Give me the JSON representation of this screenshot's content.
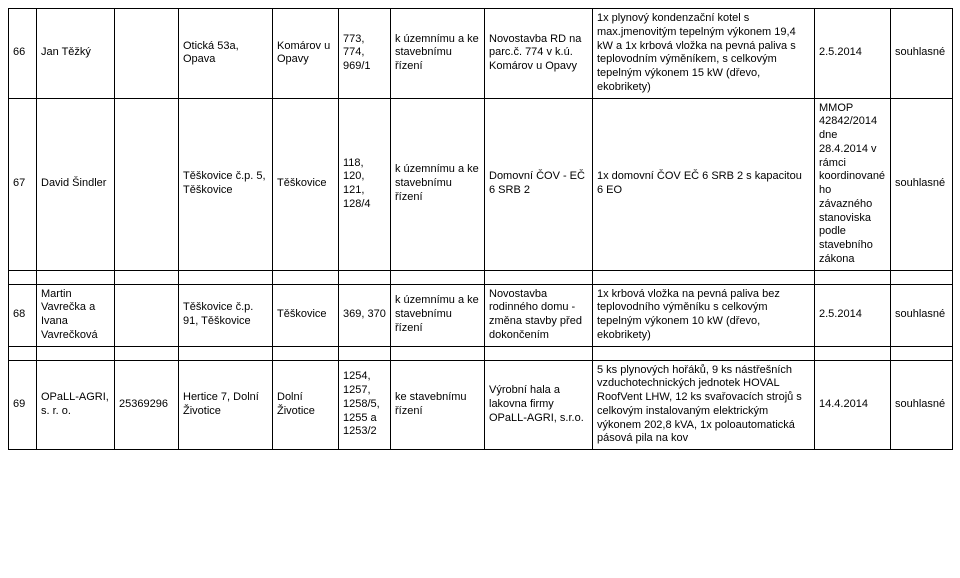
{
  "rows": [
    {
      "num": "66",
      "name": "Jan Těžký",
      "id": "",
      "addr": "Otická 53a, Opava",
      "loc": "Komárov u Opavy",
      "parc": "773, 774, 969/1",
      "proc": "k územnímu a ke stavebnímu řízení",
      "build": "Novostavba RD na parc.č. 774 v k.ú. Komárov u Opavy",
      "desc": "1x plynový kondenzační kotel s max.jmenovitým tepelným výkonem 19,4 kW a 1x krbová vložka na pevná paliva s teplovodním výměníkem, s celkovým tepelným výkonem 15 kW (dřevo, ekobrikety)",
      "date": "2.5.2014",
      "stat": "souhlasné"
    },
    {
      "num": "67",
      "name": "David Šindler",
      "id": "",
      "addr": "Těškovice č.p. 5, Těškovice",
      "loc": "Těškovice",
      "parc": "118, 120, 121, 128/4",
      "proc": "k územnímu a ke stavebnímu řízení",
      "build": "Domovní ČOV - EČ 6 SRB 2",
      "desc": "1x domovní ČOV EČ 6 SRB 2 s kapacitou 6 EO",
      "date": "MMOP 42842/2014 dne 28.4.2014 v rámci koordinovaného závazného stanoviska podle stavebního zákona",
      "stat": "souhlasné"
    },
    {
      "num": "68",
      "name": "Martin Vavrečka a Ivana Vavrečková",
      "id": "",
      "addr": "Těškovice č.p. 91, Těškovice",
      "loc": "Těškovice",
      "parc": "369, 370",
      "proc": "k územnímu a ke stavebnímu řízení",
      "build": "Novostavba rodinného domu - změna stavby před dokončením",
      "desc": "1x krbová vložka na pevná paliva bez teplovodního výměníku s celkovým tepelným výkonem 10 kW (dřevo, ekobrikety)",
      "date": "2.5.2014",
      "stat": "souhlasné"
    },
    {
      "num": "69",
      "name": "OPaLL-AGRI, s. r. o.",
      "id": "25369296",
      "addr": "Hertice 7, Dolní Životice",
      "loc": "Dolní Životice",
      "parc": "1254, 1257, 1258/5, 1255 a 1253/2",
      "proc": "ke stavebnímu řízení",
      "build": "Výrobní hala a lakovna firmy OPaLL-AGRI, s.r.o.",
      "desc": "5 ks plynových hořáků, 9 ks nástřešních vzduchotechnických jednotek HOVAL RoofVent LHW, 12 ks svařovacích strojů s celkovým instalovaným elektrickým výkonem 202,8 kVA, 1x poloautomatická pásová pila na kov",
      "date": "14.4.2014",
      "stat": "souhlasné"
    }
  ]
}
